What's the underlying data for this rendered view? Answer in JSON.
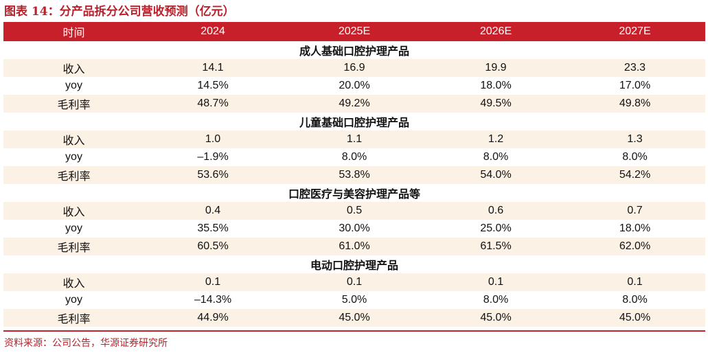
{
  "title": "图表 14：分产品拆分公司营收预测（亿元）",
  "header": [
    "时间",
    "2024",
    "2025E",
    "2026E",
    "2027E"
  ],
  "sections": [
    {
      "name": "成人基础口腔护理产品",
      "rows": [
        {
          "label": "收入",
          "values": [
            "14.1",
            "16.9",
            "19.9",
            "23.3"
          ]
        },
        {
          "label": "yoy",
          "values": [
            "14.5%",
            "20.0%",
            "18.0%",
            "17.0%"
          ]
        },
        {
          "label": "毛利率",
          "values": [
            "48.7%",
            "49.2%",
            "49.5%",
            "49.8%"
          ]
        }
      ]
    },
    {
      "name": "儿童基础口腔护理产品",
      "rows": [
        {
          "label": "收入",
          "values": [
            "1.0",
            "1.1",
            "1.2",
            "1.3"
          ]
        },
        {
          "label": "yoy",
          "values": [
            "–1.9%",
            "8.0%",
            "8.0%",
            "8.0%"
          ]
        },
        {
          "label": "毛利率",
          "values": [
            "53.6%",
            "53.8%",
            "54.0%",
            "54.2%"
          ]
        }
      ]
    },
    {
      "name": "口腔医疗与美容护理产品等",
      "rows": [
        {
          "label": "收入",
          "values": [
            "0.4",
            "0.5",
            "0.6",
            "0.7"
          ]
        },
        {
          "label": "yoy",
          "values": [
            "35.5%",
            "30.0%",
            "25.0%",
            "18.0%"
          ]
        },
        {
          "label": "毛利率",
          "values": [
            "60.5%",
            "61.0%",
            "61.5%",
            "62.0%"
          ]
        }
      ]
    },
    {
      "name": "电动口腔护理产品",
      "rows": [
        {
          "label": "收入",
          "values": [
            "0.1",
            "0.1",
            "0.1",
            "0.1"
          ]
        },
        {
          "label": "yoy",
          "values": [
            "–14.3%",
            "5.0%",
            "8.0%",
            "8.0%"
          ]
        },
        {
          "label": "毛利率",
          "values": [
            "44.9%",
            "45.0%",
            "45.0%",
            "45.0%"
          ]
        }
      ]
    }
  ],
  "source": "资料来源：公司公告，华源证券研究所",
  "colors": {
    "accent": "#c8202a",
    "row_shade": "#fbf1e4"
  }
}
